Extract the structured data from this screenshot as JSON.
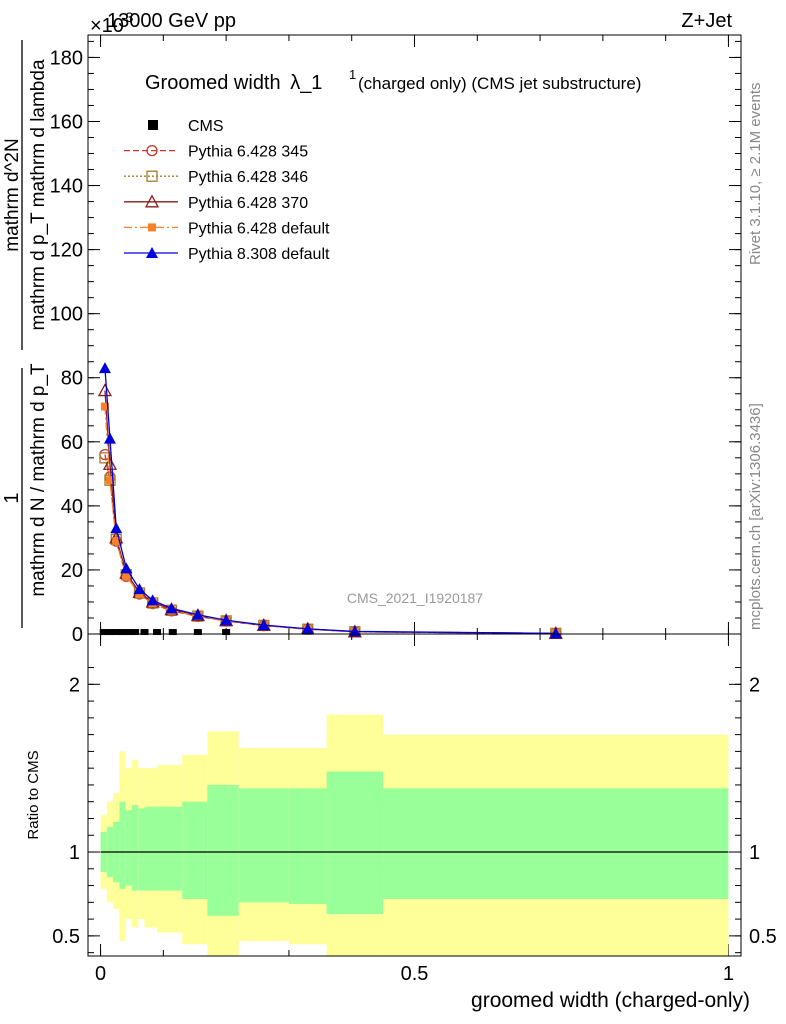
{
  "header": {
    "energy_label": "13000 GeV pp",
    "process_label": "Z+Jet",
    "exponent_label": "×10",
    "exponent_sup": "-3"
  },
  "main_plot": {
    "title_main": "Groomed width",
    "title_lambda": "λ_1",
    "title_sup": "1",
    "title_rest": " (charged only) (CMS jet substructure)",
    "ylabel_num": "1",
    "ylabel_den": "mathrm d N / mathrm d p_T",
    "ylabel_num2": "mathrm d^2N",
    "ylabel_den2": "mathrm d p_T mathrm d lambda",
    "analysis_id": "CMS_2021_I1920187"
  },
  "side_labels": {
    "rivet": "Rivet 3.1.10, ≥ 2.1M events",
    "mcplots": "mcplots.cern.ch [arXiv:1306.3436]"
  },
  "ratio_plot": {
    "ylabel": "Ratio to CMS"
  },
  "xlabel": "groomed width (charged-only)",
  "legend": [
    {
      "name": "CMS",
      "color": "#000000"
    },
    {
      "name": "Pythia 6.428 345",
      "color": "#c0392b"
    },
    {
      "name": "Pythia 6.428 346",
      "color": "#a67c2b"
    },
    {
      "name": "Pythia 6.428 370",
      "color": "#8b1a1a"
    },
    {
      "name": "Pythia 6.428 default",
      "color": "#f5822a"
    },
    {
      "name": "Pythia 8.308 default",
      "color": "#0000dd"
    }
  ],
  "chart_data": {
    "type": "line",
    "x_edges": [
      0,
      0.01,
      0.02,
      0.03,
      0.04,
      0.05,
      0.06,
      0.07,
      0.08,
      0.09,
      0.1,
      0.13,
      0.17,
      0.22,
      0.3,
      0.36,
      0.45,
      1.0
    ],
    "x_points": [
      0.007,
      0.015,
      0.025,
      0.041,
      0.062,
      0.083,
      0.113,
      0.155,
      0.2,
      0.26,
      0.33,
      0.405,
      0.725
    ],
    "xlim": [
      -0.02,
      1.02
    ],
    "ylim": [
      0,
      187
    ],
    "yticks": [
      0,
      20,
      40,
      60,
      80,
      100,
      120,
      140,
      160,
      180
    ],
    "xticks": [
      0,
      0.5,
      1
    ],
    "cms_points": {
      "x": [
        0.005,
        0.015,
        0.025,
        0.035,
        0.045,
        0.055,
        0.07,
        0.09,
        0.115,
        0.155,
        0.2
      ],
      "y": [
        0.3,
        0.3,
        0.3,
        0.3,
        0.3,
        0.3,
        0.3,
        0.3,
        0.3,
        0.3,
        0.3
      ]
    },
    "series": [
      {
        "name": "Pythia 6.428 345",
        "marker": "circle-open",
        "dash": "6,3",
        "y": [
          56,
          49,
          29,
          18,
          12.5,
          9.5,
          7.2,
          5.5,
          4,
          2.6,
          1.5,
          0.7,
          0.2
        ]
      },
      {
        "name": "Pythia 6.428 346",
        "marker": "square-open",
        "dash": "2,2",
        "y": [
          55,
          48,
          29.5,
          18.5,
          12.8,
          9.7,
          7.4,
          5.6,
          4.1,
          2.7,
          1.5,
          0.7,
          0.2
        ]
      },
      {
        "name": "Pythia 6.428 370",
        "marker": "triangle-open",
        "dash": "",
        "y": [
          76,
          53,
          30,
          19,
          13,
          10,
          7.6,
          5.8,
          4.2,
          2.7,
          1.6,
          0.7,
          0.2
        ]
      },
      {
        "name": "Pythia 6.428 default",
        "marker": "square-filled",
        "dash": "8,3,2,3",
        "y": [
          71,
          48,
          29,
          18,
          12.5,
          9.6,
          7.3,
          5.6,
          4.1,
          2.6,
          1.5,
          0.7,
          0.2
        ]
      },
      {
        "name": "Pythia 8.308 default",
        "marker": "triangle-filled",
        "dash": "",
        "y": [
          83,
          61,
          33,
          20.5,
          14,
          10.5,
          8,
          6,
          4.3,
          2.8,
          1.6,
          0.8,
          0.2
        ]
      }
    ],
    "ratio": {
      "ylim": [
        0.38,
        2.3
      ],
      "yticks": [
        0.5,
        1,
        2
      ],
      "band_inner_colors": "#99ff99",
      "band_outer_colors": "#ffff99",
      "bins": [
        {
          "x0": 0.0,
          "x1": 0.01,
          "in_lo": 0.88,
          "in_hi": 1.12,
          "out_lo": 0.78,
          "out_hi": 1.22
        },
        {
          "x0": 0.01,
          "x1": 0.02,
          "in_lo": 0.85,
          "in_hi": 1.15,
          "out_lo": 0.7,
          "out_hi": 1.3
        },
        {
          "x0": 0.02,
          "x1": 0.03,
          "in_lo": 0.82,
          "in_hi": 1.18,
          "out_lo": 0.66,
          "out_hi": 1.35
        },
        {
          "x0": 0.03,
          "x1": 0.04,
          "in_lo": 0.78,
          "in_hi": 1.3,
          "out_lo": 0.47,
          "out_hi": 1.6
        },
        {
          "x0": 0.04,
          "x1": 0.05,
          "in_lo": 0.8,
          "in_hi": 1.25,
          "out_lo": 0.6,
          "out_hi": 1.5
        },
        {
          "x0": 0.05,
          "x1": 0.06,
          "in_lo": 0.77,
          "in_hi": 1.28,
          "out_lo": 0.55,
          "out_hi": 1.55
        },
        {
          "x0": 0.06,
          "x1": 0.07,
          "in_lo": 0.77,
          "in_hi": 1.26,
          "out_lo": 0.6,
          "out_hi": 1.5
        },
        {
          "x0": 0.07,
          "x1": 0.09,
          "in_lo": 0.77,
          "in_hi": 1.27,
          "out_lo": 0.55,
          "out_hi": 1.5
        },
        {
          "x0": 0.09,
          "x1": 0.13,
          "in_lo": 0.77,
          "in_hi": 1.27,
          "out_lo": 0.52,
          "out_hi": 1.52
        },
        {
          "x0": 0.13,
          "x1": 0.17,
          "in_lo": 0.72,
          "in_hi": 1.3,
          "out_lo": 0.45,
          "out_hi": 1.58
        },
        {
          "x0": 0.17,
          "x1": 0.22,
          "in_lo": 0.62,
          "in_hi": 1.4,
          "out_lo": 0.38,
          "out_hi": 1.72
        },
        {
          "x0": 0.22,
          "x1": 0.3,
          "in_lo": 0.7,
          "in_hi": 1.38,
          "out_lo": 0.47,
          "out_hi": 1.62
        },
        {
          "x0": 0.3,
          "x1": 0.36,
          "in_lo": 0.69,
          "in_hi": 1.38,
          "out_lo": 0.45,
          "out_hi": 1.62
        },
        {
          "x0": 0.36,
          "x1": 0.45,
          "in_lo": 0.63,
          "in_hi": 1.48,
          "out_lo": 0.38,
          "out_hi": 1.82
        },
        {
          "x0": 0.45,
          "x1": 1.0,
          "in_lo": 0.72,
          "in_hi": 1.38,
          "out_lo": 0.38,
          "out_hi": 1.7
        }
      ]
    }
  }
}
